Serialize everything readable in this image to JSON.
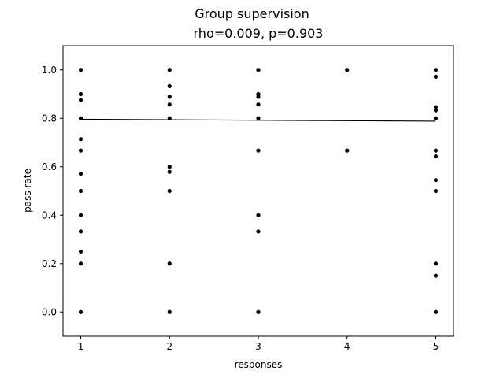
{
  "figure": {
    "suptitle": "Group supervision",
    "title": "rho=0.009, p=0.903"
  },
  "chart_data": {
    "type": "scatter",
    "title": "rho=0.009, p=0.903",
    "xlabel": "responses",
    "ylabel": "pass rate",
    "xlim": [
      0.8,
      5.2
    ],
    "ylim": [
      -0.1,
      1.1
    ],
    "xticks": [
      1,
      2,
      3,
      4,
      5
    ],
    "yticks": [
      0.0,
      0.2,
      0.4,
      0.6,
      0.8,
      1.0
    ],
    "ytick_labels": [
      "0.0",
      "0.2",
      "0.4",
      "0.6",
      "0.8",
      "1.0"
    ],
    "grid": false,
    "colors": {
      "points": "#000000",
      "fit_line": "#000000"
    },
    "series": [
      {
        "kind": "points",
        "points": [
          [
            1,
            1.0
          ],
          [
            1,
            0.9
          ],
          [
            1,
            0.875
          ],
          [
            1,
            0.8
          ],
          [
            1,
            0.714
          ],
          [
            1,
            0.667
          ],
          [
            1,
            0.571
          ],
          [
            1,
            0.5
          ],
          [
            1,
            0.4
          ],
          [
            1,
            0.333
          ],
          [
            1,
            0.25
          ],
          [
            1,
            0.2
          ],
          [
            1,
            0.0
          ],
          [
            2,
            1.0
          ],
          [
            2,
            0.933
          ],
          [
            2,
            0.889
          ],
          [
            2,
            0.857
          ],
          [
            2,
            0.8
          ],
          [
            2,
            0.6
          ],
          [
            2,
            0.579
          ],
          [
            2,
            0.5
          ],
          [
            2,
            0.2
          ],
          [
            2,
            0.0
          ],
          [
            3,
            1.0
          ],
          [
            3,
            0.9
          ],
          [
            3,
            0.889
          ],
          [
            3,
            0.857
          ],
          [
            3,
            0.8
          ],
          [
            3,
            0.667
          ],
          [
            3,
            0.4
          ],
          [
            3,
            0.333
          ],
          [
            3,
            0.0
          ],
          [
            4,
            1.0
          ],
          [
            4,
            0.667
          ],
          [
            5,
            1.0
          ],
          [
            5,
            0.972
          ],
          [
            5,
            0.846
          ],
          [
            5,
            0.833
          ],
          [
            5,
            0.8
          ],
          [
            5,
            0.667
          ],
          [
            5,
            0.643
          ],
          [
            5,
            0.545
          ],
          [
            5,
            0.5
          ],
          [
            5,
            0.2
          ],
          [
            5,
            0.15
          ],
          [
            5,
            0.0
          ]
        ]
      },
      {
        "kind": "fit_line",
        "points": [
          [
            1,
            0.796
          ],
          [
            5,
            0.788
          ]
        ]
      }
    ]
  }
}
